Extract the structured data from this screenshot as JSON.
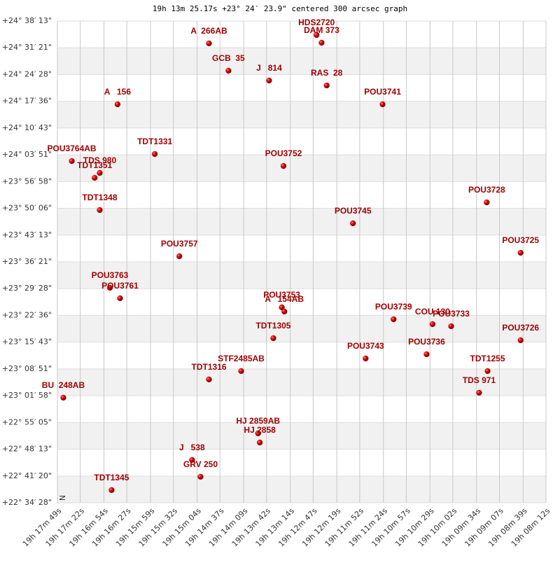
{
  "chart_data": {
    "type": "scatter",
    "title": "19h 13m 25.17s +23° 24′ 23.9\" centered 300 arcsec graph",
    "compass": "N",
    "color": "#cc0000",
    "grid": true,
    "xlim": [
      69469,
      68892
    ],
    "ylim": [
      81268,
      88693
    ],
    "xticks": [
      {
        "value": 69469,
        "label": "19h 17m 49s"
      },
      {
        "value": 69442,
        "label": "19h 17m 22s"
      },
      {
        "value": 69414,
        "label": "19h 16m 54s"
      },
      {
        "value": 69387,
        "label": "19h 16m 27s"
      },
      {
        "value": 69359,
        "label": "19h 15m 59s"
      },
      {
        "value": 69332,
        "label": "19h 15m 32s"
      },
      {
        "value": 69304,
        "label": "19h 15m 04s"
      },
      {
        "value": 69277,
        "label": "19h 14m 37s"
      },
      {
        "value": 69249,
        "label": "19h 14m 09s"
      },
      {
        "value": 69222,
        "label": "19h 13m 42s"
      },
      {
        "value": 69194,
        "label": "19h 13m 14s"
      },
      {
        "value": 69167,
        "label": "19h 12m 47s"
      },
      {
        "value": 69139,
        "label": "19h 12m 19s"
      },
      {
        "value": 69112,
        "label": "19h 11m 52s"
      },
      {
        "value": 69084,
        "label": "19h 11m 24s"
      },
      {
        "value": 69057,
        "label": "19h 10m 57s"
      },
      {
        "value": 69029,
        "label": "19h 10m 29s"
      },
      {
        "value": 69002,
        "label": "19h 10m 02s"
      },
      {
        "value": 68974,
        "label": "19h 09m 34s"
      },
      {
        "value": 68947,
        "label": "19h 09m 07s"
      },
      {
        "value": 68919,
        "label": "19h 08m 39s"
      },
      {
        "value": 68892,
        "label": "19h 08m 12s"
      }
    ],
    "yticks": [
      {
        "value": 88693,
        "label": "+24° 38′ 13\""
      },
      {
        "value": 88281,
        "label": "+24° 31′ 21\""
      },
      {
        "value": 87868,
        "label": "+24° 24′ 28\""
      },
      {
        "value": 87456,
        "label": "+24° 17′ 36\""
      },
      {
        "value": 87043,
        "label": "+24° 10′ 43\""
      },
      {
        "value": 86631,
        "label": "+24° 03′ 51\""
      },
      {
        "value": 86218,
        "label": "+23° 56′ 58\""
      },
      {
        "value": 85806,
        "label": "+23° 50′ 06\""
      },
      {
        "value": 85393,
        "label": "+23° 43′ 13\""
      },
      {
        "value": 84981,
        "label": "+23° 36′ 21\""
      },
      {
        "value": 84568,
        "label": "+23° 29′ 28\""
      },
      {
        "value": 84156,
        "label": "+23° 22′ 36\""
      },
      {
        "value": 83743,
        "label": "+23° 15′ 43\""
      },
      {
        "value": 83331,
        "label": "+23° 08′ 51\""
      },
      {
        "value": 82918,
        "label": "+23° 01′ 58\""
      },
      {
        "value": 82505,
        "label": "+22° 55′ 05\""
      },
      {
        "value": 82093,
        "label": "+22° 48′ 13\""
      },
      {
        "value": 81680,
        "label": "+22° 41′ 20\""
      },
      {
        "value": 81268,
        "label": "+22° 34′ 28\""
      }
    ],
    "point_labels": [
      "A  266AB",
      "HDS2720",
      "DAM 373",
      "GCB  35",
      "J   814",
      "RAS  28",
      "A   156",
      "POU3741",
      "TDT1331",
      "POU3764AB",
      "POU3752",
      "TDS 980",
      "TDT1351",
      "POU3728",
      "TDT1348",
      "POU3745",
      "POU3725",
      "POU3757",
      "POU3763",
      "POU3761",
      "POU3753",
      "A   154AB",
      "POU3739",
      "COU 130",
      "POU3733",
      "TDT1305",
      "POU3726",
      "POU3736",
      "POU3743",
      "TDT1255",
      "STF2485AB",
      "TDT1316",
      "TDS 971",
      "BU  248AB",
      "HJ 2859AB",
      "HJ 2858",
      "J   538",
      "GRV 250",
      "TDT1345"
    ],
    "x": [
      69290,
      69163,
      69157,
      69267,
      69219,
      69151,
      69398,
      69085,
      69354,
      69452,
      69202,
      69419,
      69425,
      68962,
      69419,
      69120,
      68922,
      69325,
      69407,
      69395,
      69204,
      69201,
      69072,
      69026,
      69004,
      69214,
      68922,
      69033,
      69105,
      68961,
      69252,
      69290,
      68971,
      69462,
      69232,
      69230,
      69310,
      69300,
      69405
    ],
    "values": [
      88348,
      88477,
      88358,
      87927,
      87776,
      87700,
      87409,
      87409,
      86643,
      86535,
      86459,
      86352,
      86276,
      85898,
      85780,
      85575,
      85121,
      85068,
      84582,
      84420,
      84280,
      84215,
      84096,
      84021,
      83989,
      83805,
      83773,
      83557,
      83492,
      83298,
      83298,
      83169,
      82964,
      82888,
      82338,
      82197,
      81928,
      81669,
      81464
    ]
  }
}
